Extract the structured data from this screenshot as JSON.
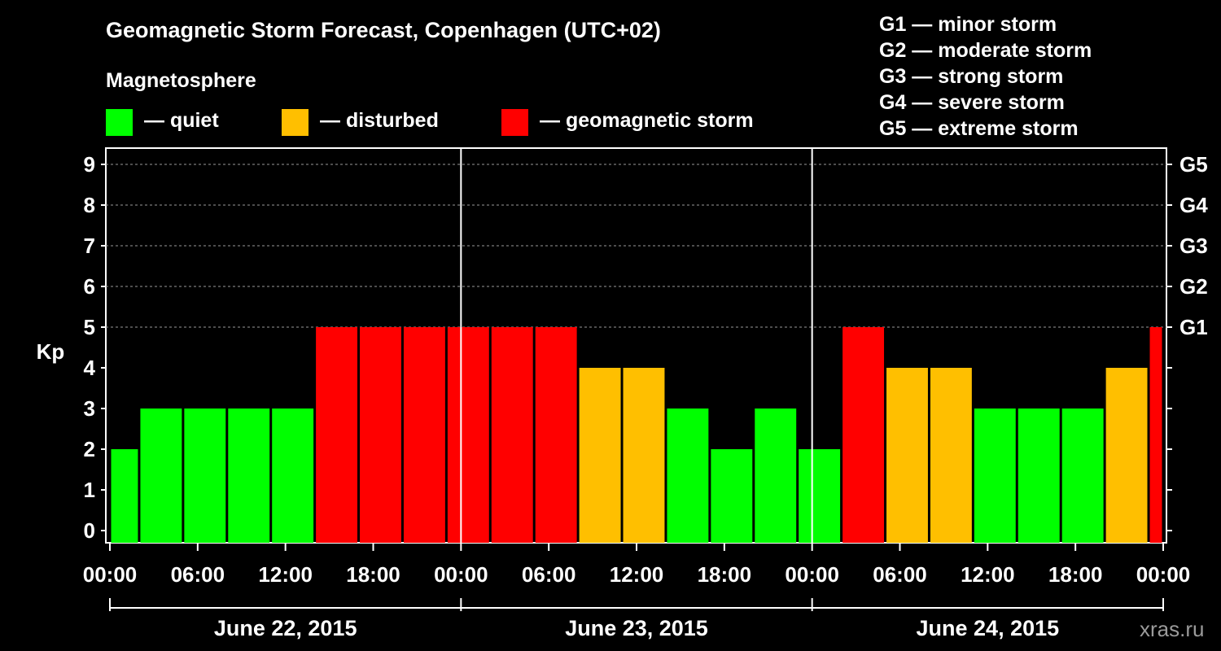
{
  "header": {
    "title": "Geomagnetic Storm Forecast, Copenhagen (UTC+02)",
    "magnetosphere_label": "Magnetosphere"
  },
  "legend": [
    {
      "label": "— quiet",
      "color": "#00ff00"
    },
    {
      "label": "— disturbed",
      "color": "#ffbf00"
    },
    {
      "label": "— geomagnetic storm",
      "color": "#ff0000"
    }
  ],
  "gscale": [
    "G1 — minor storm",
    "G2 — moderate storm",
    "G3 — strong storm",
    "G4 — severe storm",
    "G5 — extreme storm"
  ],
  "watermark": "xras.ru",
  "chart_data": {
    "type": "bar",
    "title": "Geomagnetic Storm Forecast, Copenhagen (UTC+02)",
    "ylabel": "Kp",
    "ylim": [
      0,
      9
    ],
    "yticks": [
      "0",
      "1",
      "2",
      "3",
      "4",
      "5",
      "6",
      "7",
      "8",
      "9"
    ],
    "right_ticks": [
      {
        "kp": 5,
        "label": "G1"
      },
      {
        "kp": 6,
        "label": "G2"
      },
      {
        "kp": 7,
        "label": "G3"
      },
      {
        "kp": 8,
        "label": "G4"
      },
      {
        "kp": 9,
        "label": "G5"
      }
    ],
    "grid": true,
    "xticks_hours": [
      0,
      6,
      12,
      18,
      24,
      30,
      36,
      42,
      48,
      54,
      60,
      66,
      72
    ],
    "xtick_labels": [
      "00:00",
      "06:00",
      "12:00",
      "18:00",
      "00:00",
      "06:00",
      "12:00",
      "18:00",
      "00:00",
      "06:00",
      "12:00",
      "18:00",
      "00:00"
    ],
    "days": [
      "June 22, 2015",
      "June 23, 2015",
      "June 24, 2015"
    ],
    "colors": {
      "quiet": "#00ff00",
      "disturbed": "#ffbf00",
      "storm": "#ff0000"
    },
    "bars": [
      {
        "start": 0,
        "end": 2,
        "kp": 2
      },
      {
        "start": 2,
        "end": 5,
        "kp": 3
      },
      {
        "start": 5,
        "end": 8,
        "kp": 3
      },
      {
        "start": 8,
        "end": 11,
        "kp": 3
      },
      {
        "start": 11,
        "end": 14,
        "kp": 3
      },
      {
        "start": 14,
        "end": 17,
        "kp": 5
      },
      {
        "start": 17,
        "end": 20,
        "kp": 5
      },
      {
        "start": 20,
        "end": 23,
        "kp": 5
      },
      {
        "start": 23,
        "end": 26,
        "kp": 5
      },
      {
        "start": 26,
        "end": 29,
        "kp": 5
      },
      {
        "start": 29,
        "end": 32,
        "kp": 5
      },
      {
        "start": 32,
        "end": 35,
        "kp": 4
      },
      {
        "start": 35,
        "end": 38,
        "kp": 4
      },
      {
        "start": 38,
        "end": 41,
        "kp": 3
      },
      {
        "start": 41,
        "end": 44,
        "kp": 2
      },
      {
        "start": 44,
        "end": 47,
        "kp": 3
      },
      {
        "start": 47,
        "end": 50,
        "kp": 2
      },
      {
        "start": 50,
        "end": 53,
        "kp": 5
      },
      {
        "start": 53,
        "end": 56,
        "kp": 4
      },
      {
        "start": 56,
        "end": 59,
        "kp": 4
      },
      {
        "start": 59,
        "end": 62,
        "kp": 3
      },
      {
        "start": 62,
        "end": 65,
        "kp": 3
      },
      {
        "start": 65,
        "end": 68,
        "kp": 3
      },
      {
        "start": 68,
        "end": 71,
        "kp": 4
      },
      {
        "start": 71,
        "end": 72,
        "kp": 5
      }
    ]
  }
}
